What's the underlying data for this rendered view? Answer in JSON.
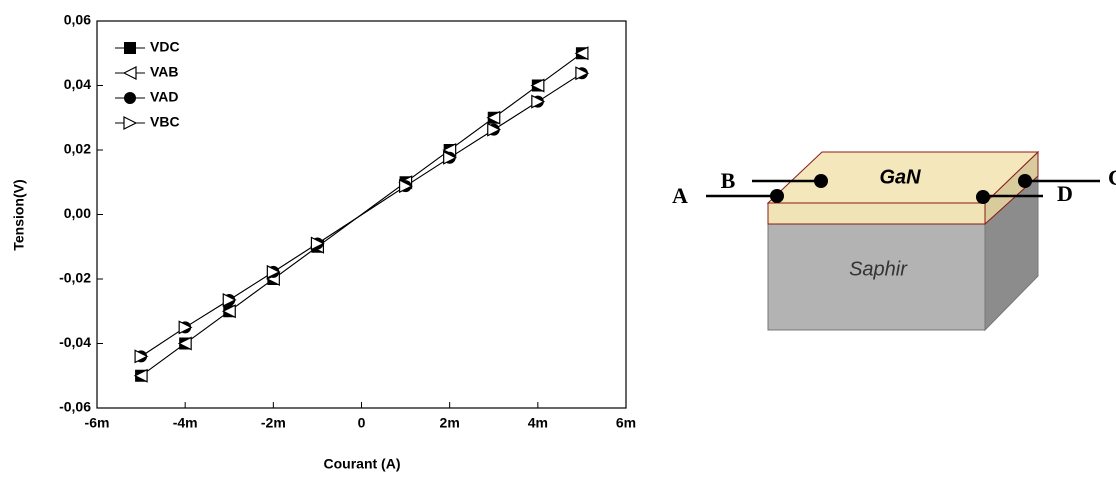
{
  "chart_data": {
    "type": "line",
    "x_label": "Courant (A)",
    "y_label": "Tension(V)",
    "x": [
      -0.005,
      -0.004,
      -0.003,
      -0.002,
      -0.001,
      0.001,
      0.002,
      0.003,
      0.004,
      0.005
    ],
    "series": [
      {
        "name": "VDC",
        "color": "#000000",
        "marker": "square",
        "values": [
          -0.05,
          -0.04,
          -0.03,
          -0.02,
          -0.01,
          0.01,
          0.02,
          0.03,
          0.04,
          0.05
        ]
      },
      {
        "name": "VAB",
        "color": "#000000",
        "marker": "triangle-left",
        "values": [
          -0.05,
          -0.04,
          -0.03,
          -0.02,
          -0.01,
          0.01,
          0.02,
          0.03,
          0.04,
          0.05
        ]
      },
      {
        "name": "VAD",
        "color": "#000000",
        "marker": "circle",
        "values": [
          -0.044,
          -0.035,
          -0.0265,
          -0.0178,
          -0.009,
          0.0088,
          0.0176,
          0.0263,
          0.035,
          0.0438
        ]
      },
      {
        "name": "VBC",
        "color": "#000000",
        "marker": "triangle-right",
        "values": [
          -0.044,
          -0.035,
          -0.0265,
          -0.0178,
          -0.009,
          0.0088,
          0.0176,
          0.0263,
          0.035,
          0.0438
        ]
      }
    ],
    "xlim": [
      -0.006,
      0.006
    ],
    "xticks": [
      {
        "value": -0.006,
        "label": "-6m"
      },
      {
        "value": -0.004,
        "label": "-4m"
      },
      {
        "value": -0.002,
        "label": "-2m"
      },
      0,
      {
        "value": 0.002,
        "label": "2m"
      },
      {
        "value": 0.004,
        "label": "4m"
      },
      {
        "value": 0.006,
        "label": "6m"
      }
    ],
    "ylim": [
      -0.06,
      0.06
    ],
    "yticks": [
      {
        "value": -0.06,
        "label": "-0,06"
      },
      {
        "value": -0.04,
        "label": "-0,04"
      },
      {
        "value": -0.02,
        "label": "-0,02"
      },
      {
        "value": 0,
        "label": "0,00"
      },
      {
        "value": 0.02,
        "label": "0,02"
      },
      {
        "value": 0.04,
        "label": "0,04"
      },
      {
        "value": 0.06,
        "label": "0,06"
      }
    ],
    "grid": false,
    "legend": "upper left"
  },
  "diagram": {
    "layer_top": "GaN",
    "substrate": "Saphir",
    "contacts": [
      "A",
      "B",
      "C",
      "D"
    ]
  }
}
